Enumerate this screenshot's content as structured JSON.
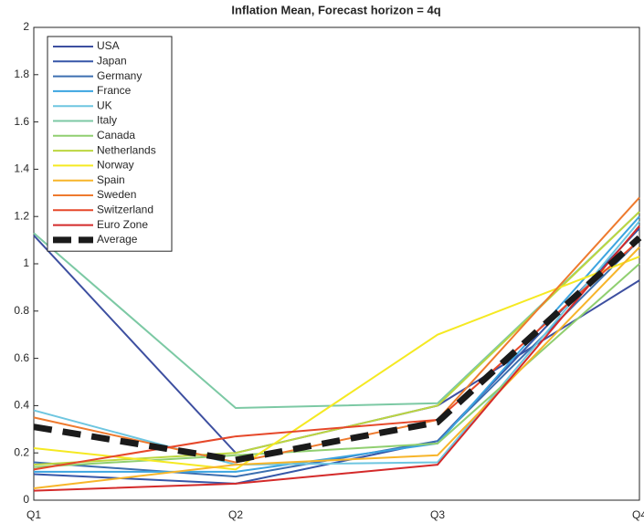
{
  "chart_data": {
    "type": "line",
    "title": "Inflation Mean, Forecast horizon = 4q",
    "categories": [
      "Q1",
      "Q2",
      "Q3",
      "Q4"
    ],
    "ylim": [
      0,
      2
    ],
    "yticks": [
      0,
      0.2,
      0.4,
      0.6,
      0.8,
      1,
      1.2,
      1.4,
      1.6,
      1.8,
      2
    ],
    "legend": "upper-left",
    "series": [
      {
        "name": "USA",
        "color": "#3d4fa0",
        "values": [
          1.12,
          0.2,
          0.4,
          0.93
        ]
      },
      {
        "name": "Japan",
        "color": "#3656a8",
        "values": [
          0.11,
          0.07,
          0.25,
          1.15
        ]
      },
      {
        "name": "Germany",
        "color": "#3c6fb0",
        "values": [
          0.16,
          0.1,
          0.25,
          1.1
        ]
      },
      {
        "name": "France",
        "color": "#3ca4e0",
        "values": [
          0.12,
          0.12,
          0.24,
          1.2
        ]
      },
      {
        "name": "UK",
        "color": "#6ec6e0",
        "values": [
          0.38,
          0.15,
          0.16,
          1.18
        ]
      },
      {
        "name": "Italy",
        "color": "#7cc9a4",
        "values": [
          1.13,
          0.39,
          0.41,
          1.22
        ]
      },
      {
        "name": "Canada",
        "color": "#90cf70",
        "values": [
          0.14,
          0.19,
          0.24,
          1.0
        ]
      },
      {
        "name": "Netherlands",
        "color": "#bcd640",
        "values": [
          0.15,
          0.2,
          0.4,
          1.22
        ]
      },
      {
        "name": "Norway",
        "color": "#f5e922",
        "values": [
          0.22,
          0.13,
          0.7,
          1.03
        ]
      },
      {
        "name": "Spain",
        "color": "#f7b52a",
        "values": [
          0.05,
          0.15,
          0.19,
          1.07
        ]
      },
      {
        "name": "Sweden",
        "color": "#ee7a2e",
        "values": [
          0.35,
          0.16,
          0.34,
          1.28
        ]
      },
      {
        "name": "Switzerland",
        "color": "#e6482a",
        "values": [
          0.13,
          0.27,
          0.34,
          1.1
        ]
      },
      {
        "name": "Euro Zone",
        "color": "#d42a2a",
        "values": [
          0.04,
          0.07,
          0.15,
          1.16
        ]
      },
      {
        "name": "Average",
        "color": "#1a1a1a",
        "values": [
          0.31,
          0.17,
          0.33,
          1.11
        ]
      }
    ]
  }
}
